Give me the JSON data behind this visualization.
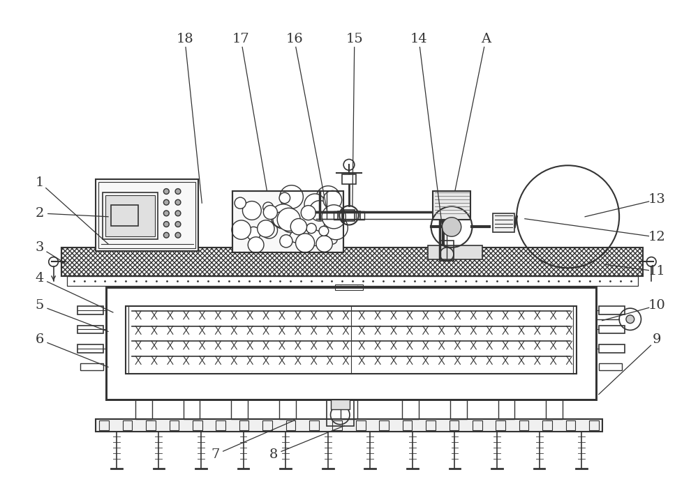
{
  "bg_color": "#ffffff",
  "line_color": "#333333",
  "figure_size": [
    10.0,
    6.97
  ],
  "dpi": 100,
  "border_color": "#333333"
}
